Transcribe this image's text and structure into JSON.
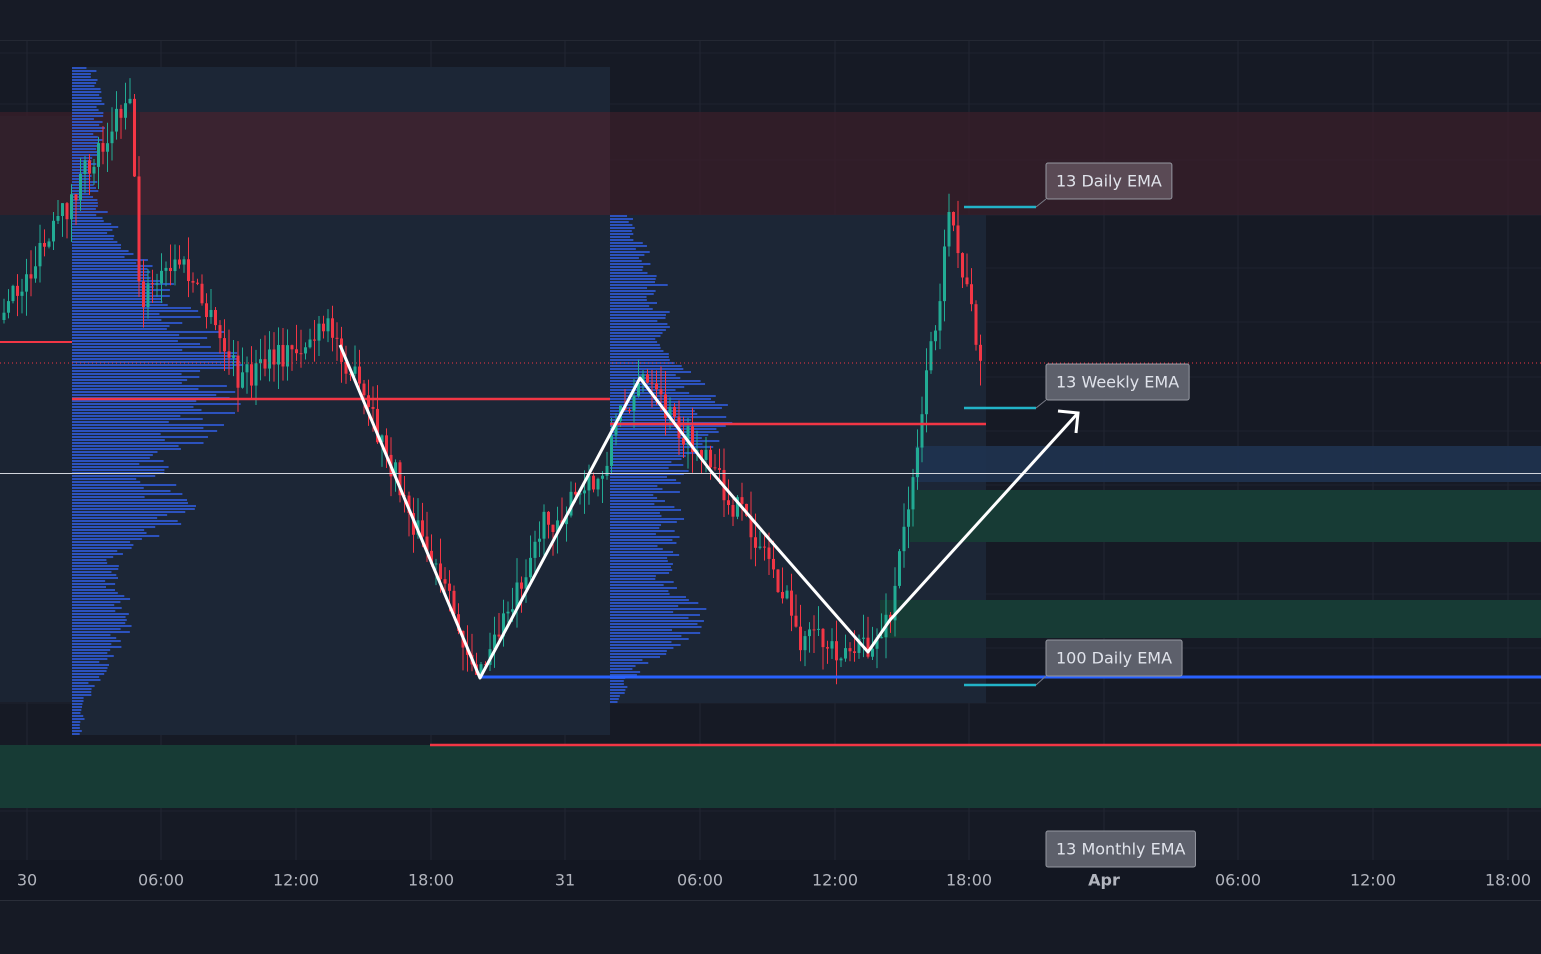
{
  "time_axis": {
    "labels": [
      "30",
      "06:00",
      "12:00",
      "18:00",
      "31",
      "06:00",
      "12:00",
      "18:00",
      "Apr",
      "06:00",
      "12:00",
      "18:00"
    ]
  },
  "annotations": [
    "13 Daily EMA",
    "13 Weekly EMA",
    "100 Daily EMA",
    "13 Monthly EMA"
  ]
}
